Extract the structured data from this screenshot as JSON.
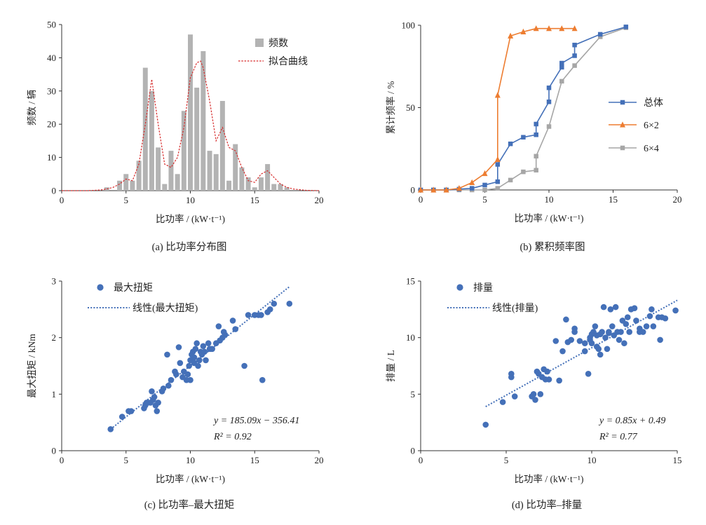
{
  "colors": {
    "bar": "#b3b3b3",
    "fit_curve": "#d62b2b",
    "blue": "#4470b8",
    "orange": "#ed7d31",
    "gray": "#a6a6a6",
    "axis": "#333333"
  },
  "chart_data": [
    {
      "id": "a",
      "type": "bar",
      "caption": "(a)  比功率分布图",
      "xlabel": "比功率 / (kW·t⁻¹)",
      "ylabel": "频数 / 辆",
      "xlim": [
        0,
        20
      ],
      "ylim": [
        0,
        50
      ],
      "xticks": [
        0,
        5,
        10,
        15,
        20
      ],
      "yticks": [
        0,
        10,
        20,
        30,
        40,
        50
      ],
      "legend": [
        "频数",
        "拟合曲线"
      ],
      "bar_width": 0.38,
      "bars": {
        "x": [
          3.5,
          4,
          4.5,
          5,
          5.5,
          6,
          6.5,
          7,
          7.5,
          8,
          8.5,
          9,
          9.5,
          10,
          10.5,
          11,
          11.5,
          12,
          12.5,
          13,
          13.5,
          14,
          14.5,
          15,
          15.5,
          16,
          16.5,
          17,
          17.5
        ],
        "values": [
          1,
          0,
          3,
          5,
          3,
          9,
          37,
          30,
          13,
          2,
          12,
          5,
          24,
          47,
          31,
          42,
          12,
          11,
          27,
          3,
          14,
          7,
          4,
          1,
          4,
          8,
          2,
          2,
          1
        ]
      },
      "fit_curve": {
        "x": [
          0,
          2,
          3,
          3.5,
          4,
          4.5,
          5,
          5.5,
          6,
          6.5,
          7,
          7.5,
          8,
          8.5,
          9,
          9.5,
          10,
          10.5,
          10.8,
          11,
          11.5,
          12,
          12.5,
          13,
          13.5,
          14,
          14.5,
          15,
          15.5,
          16,
          16.5,
          17,
          17.5,
          18,
          19,
          20
        ],
        "y": [
          0,
          0,
          0.2,
          0.5,
          1,
          2,
          3.5,
          3,
          8,
          20,
          33.5,
          20,
          8,
          7,
          10,
          19,
          34,
          38.5,
          39,
          37,
          27,
          15,
          19,
          13,
          12,
          7,
          3,
          2.5,
          5,
          6,
          4,
          2,
          1,
          0.5,
          0.1,
          0
        ]
      }
    },
    {
      "id": "b",
      "type": "line",
      "caption": "(b)  累积频率图",
      "xlabel": "比功率 / (kW·t⁻¹)",
      "ylabel": "累计频率 / %",
      "xlim": [
        0,
        20
      ],
      "ylim": [
        0,
        100
      ],
      "xticks": [
        0,
        5,
        10,
        15,
        20
      ],
      "yticks": [
        0,
        50,
        100
      ],
      "legend_position": "right",
      "series": [
        {
          "name": "总体",
          "marker": "square",
          "color": "#4470b8",
          "x": [
            0,
            1,
            2,
            3,
            4,
            5,
            6,
            6,
            7,
            8,
            9,
            9,
            10,
            10,
            11,
            11,
            12,
            12,
            14,
            16
          ],
          "y": [
            0,
            0,
            0,
            0.5,
            1,
            3,
            5,
            15.5,
            28,
            32,
            33.5,
            40,
            53.5,
            62,
            74.5,
            77,
            81.5,
            88,
            94.5,
            99
          ]
        },
        {
          "name": "6×2",
          "marker": "triangle",
          "color": "#ed7d31",
          "x": [
            0,
            1,
            2,
            3,
            4,
            5,
            6,
            6,
            7,
            8,
            9,
            10,
            11,
            12
          ],
          "y": [
            0,
            0,
            0,
            1,
            4.5,
            10,
            18.5,
            57.5,
            93.5,
            96,
            98,
            98,
            98,
            98
          ]
        },
        {
          "name": "6×4",
          "marker": "square",
          "color": "#a6a6a6",
          "x": [
            0,
            1,
            2,
            3,
            4,
            5,
            6,
            7,
            8,
            9,
            9,
            10,
            11,
            12,
            14,
            16
          ],
          "y": [
            0,
            0,
            0,
            0,
            0,
            0,
            1,
            6,
            11,
            12,
            20.5,
            38.5,
            66,
            75.5,
            93,
            98.5
          ]
        }
      ]
    },
    {
      "id": "c",
      "type": "scatter",
      "caption": "(c)  比功率–最大扭矩",
      "xlabel": "比功率 / (kW·t⁻¹)",
      "ylabel": "最大扭矩 / kNm",
      "xlim": [
        0,
        20
      ],
      "ylim": [
        0,
        3
      ],
      "xticks": [
        0,
        5,
        10,
        15,
        20
      ],
      "yticks": [
        0,
        1,
        2,
        3
      ],
      "legend": [
        "最大扭矩",
        "线性(最大扭矩)"
      ],
      "equation_y": "y = 185.09x − 356.41",
      "equation_r2": "R² = 0.92",
      "trend": {
        "x": [
          3.8,
          17.7
        ],
        "y": [
          0.38,
          2.9
        ]
      },
      "points": {
        "x": [
          3.8,
          4.7,
          5.2,
          5.4,
          6.4,
          6.5,
          6.7,
          6.9,
          7.1,
          7.2,
          7.3,
          7.4,
          7.5,
          7.8,
          7.9,
          8.3,
          8.5,
          8.8,
          8.9,
          9.1,
          9.4,
          9.5,
          9.7,
          9.8,
          9.9,
          10.0,
          10.0,
          10.1,
          10.2,
          10.3,
          10.3,
          10.4,
          10.5,
          10.6,
          10.7,
          10.8,
          11.0,
          11.1,
          11.2,
          11.4,
          11.5,
          11.7,
          12.0,
          12.2,
          12.5,
          12.6,
          12.7,
          13.3,
          13.5,
          14.2,
          14.5,
          15.0,
          15.3,
          15.5,
          15.6,
          16.0,
          16.2,
          16.5,
          17.7,
          9.2,
          10.9,
          11.6,
          12.3,
          6.6,
          7.0,
          8.2
        ],
        "y": [
          0.38,
          0.6,
          0.7,
          0.7,
          0.75,
          0.8,
          0.85,
          0.85,
          0.9,
          0.95,
          0.8,
          0.7,
          0.85,
          1.05,
          1.1,
          1.15,
          1.25,
          1.4,
          1.35,
          1.83,
          1.3,
          1.4,
          1.25,
          1.35,
          1.5,
          1.6,
          1.25,
          1.7,
          1.75,
          1.55,
          1.65,
          1.8,
          1.9,
          1.5,
          1.6,
          1.75,
          1.85,
          1.75,
          1.6,
          1.9,
          1.8,
          1.8,
          1.9,
          2.2,
          2.0,
          2.1,
          2.05,
          2.3,
          2.15,
          1.5,
          2.4,
          2.4,
          2.4,
          2.4,
          1.25,
          2.45,
          2.5,
          2.6,
          2.6,
          1.55,
          1.7,
          1.8,
          1.95,
          0.85,
          1.05,
          1.7
        ]
      }
    },
    {
      "id": "d",
      "type": "scatter",
      "caption": "(d)  比功率–排量",
      "xlabel": "比功率 / (kW·t⁻¹)",
      "ylabel": "排量 / L",
      "xlim": [
        0,
        15
      ],
      "ylim": [
        0,
        15
      ],
      "xticks": [
        0,
        5,
        10,
        15
      ],
      "yticks": [
        0,
        5,
        10,
        15
      ],
      "legend": [
        "排量",
        "线性(排量)"
      ],
      "equation_y": "y = 0.85x + 0.49",
      "equation_r2": "R² = 0.77",
      "trend": {
        "x": [
          3.8,
          15.0
        ],
        "y": [
          3.9,
          13.3
        ]
      },
      "points": {
        "x": [
          3.8,
          4.8,
          5.3,
          5.3,
          5.5,
          6.5,
          6.6,
          6.7,
          6.8,
          6.9,
          7.0,
          7.1,
          7.2,
          7.3,
          7.4,
          7.5,
          7.9,
          8.1,
          8.3,
          8.6,
          8.8,
          9.0,
          9.3,
          9.6,
          9.8,
          9.9,
          10.0,
          10.0,
          10.1,
          10.2,
          10.3,
          10.4,
          10.5,
          10.5,
          10.6,
          10.7,
          10.8,
          10.9,
          11.0,
          11.1,
          11.2,
          11.3,
          11.4,
          11.5,
          11.6,
          11.7,
          11.8,
          11.9,
          12.0,
          12.2,
          12.3,
          12.5,
          12.6,
          12.8,
          13.0,
          13.2,
          13.5,
          13.6,
          13.9,
          14.0,
          14.1,
          14.3,
          14.9,
          9.9,
          10.3,
          12.1,
          9.0,
          8.5,
          9.6,
          11.0,
          12.8,
          13.4
        ],
        "y": [
          2.3,
          4.3,
          6.8,
          6.5,
          4.8,
          4.8,
          5.0,
          4.5,
          7.0,
          6.8,
          5.0,
          6.5,
          7.2,
          6.3,
          7.0,
          6.3,
          9.7,
          6.2,
          8.8,
          9.6,
          9.8,
          10.5,
          9.7,
          9.5,
          6.8,
          9.8,
          10.3,
          9.5,
          10.5,
          11.0,
          10.2,
          9.0,
          8.5,
          10.3,
          10.5,
          12.7,
          10.0,
          9.0,
          10.4,
          12.5,
          11.0,
          10.2,
          12.7,
          10.5,
          9.8,
          10.5,
          11.5,
          9.5,
          11.2,
          10.5,
          12.5,
          12.6,
          11.5,
          10.8,
          10.5,
          11.0,
          12.5,
          11.0,
          11.8,
          9.8,
          11.8,
          11.7,
          12.4,
          10.0,
          9.2,
          11.8,
          10.8,
          11.6,
          8.8,
          10.5,
          10.5,
          11.9
        ]
      }
    }
  ]
}
